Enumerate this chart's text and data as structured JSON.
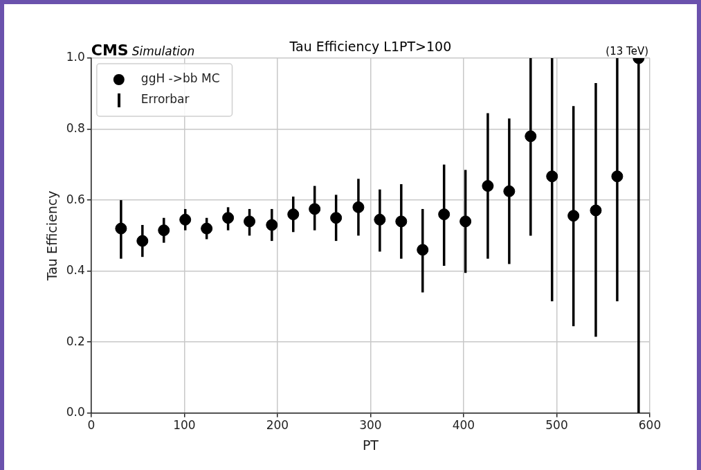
{
  "chart_data": {
    "type": "scatter",
    "title": "Tau Efficiency L1PT>100",
    "xlabel": "PT",
    "ylabel": "Tau Efficiency",
    "annotations": [
      "CMS",
      "Simulation",
      "(13 TeV)",
      "Errorbar"
    ],
    "x": [
      32,
      55,
      78,
      101,
      124,
      147,
      170,
      194,
      217,
      240,
      263,
      287,
      310,
      333,
      356,
      379,
      402,
      426,
      449,
      472,
      495,
      518,
      542,
      565,
      588
    ],
    "series": [
      {
        "name": "ggH ->bb MC",
        "color": "#000000",
        "values": [
          0.52,
          0.485,
          0.515,
          0.545,
          0.52,
          0.55,
          0.54,
          0.53,
          0.56,
          0.575,
          0.55,
          0.58,
          0.545,
          0.54,
          0.46,
          0.56,
          0.54,
          0.64,
          0.625,
          0.78,
          0.667,
          0.556,
          0.571,
          0.667,
          1.0
        ],
        "errors": [
          [
            0.435,
            0.6
          ],
          [
            0.44,
            0.53
          ],
          [
            0.48,
            0.55
          ],
          [
            0.515,
            0.575
          ],
          [
            0.49,
            0.55
          ],
          [
            0.515,
            0.58
          ],
          [
            0.5,
            0.575
          ],
          [
            0.485,
            0.575
          ],
          [
            0.51,
            0.61
          ],
          [
            0.515,
            0.64
          ],
          [
            0.485,
            0.615
          ],
          [
            0.5,
            0.66
          ],
          [
            0.455,
            0.63
          ],
          [
            0.435,
            0.645
          ],
          [
            0.34,
            0.575
          ],
          [
            0.415,
            0.7
          ],
          [
            0.395,
            0.685
          ],
          [
            0.435,
            0.845
          ],
          [
            0.42,
            0.83
          ],
          [
            0.5,
            1.0
          ],
          [
            0.315,
            1.0
          ],
          [
            0.245,
            0.865
          ],
          [
            0.215,
            0.93
          ],
          [
            0.315,
            1.0
          ],
          [
            0,
            1.0
          ]
        ]
      }
    ],
    "xlim": [
      0,
      600
    ],
    "xticks": [
      0,
      100,
      200,
      300,
      400,
      500,
      600
    ],
    "ylim": [
      0,
      1
    ],
    "yticks": [
      {
        "value": 0,
        "label": "0.0"
      },
      0.2,
      0.4,
      0.6,
      0.8,
      {
        "value": 1,
        "label": "1.0"
      }
    ],
    "grid": true,
    "legend": "top left",
    "marker": "circle"
  }
}
